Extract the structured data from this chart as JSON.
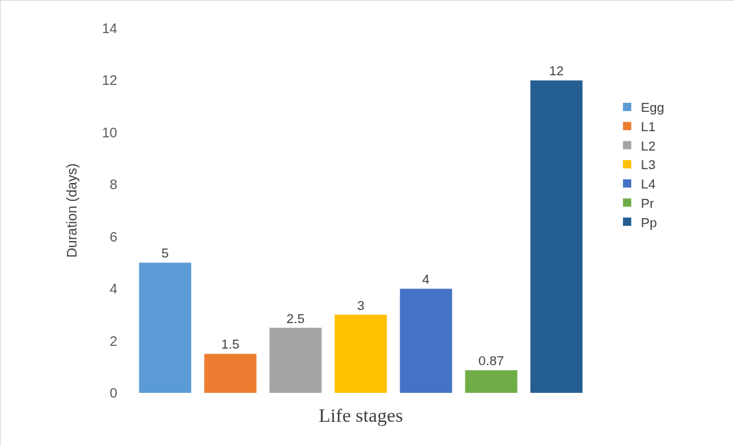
{
  "chart_data": {
    "type": "bar",
    "xlabel": "Life stages",
    "ylabel": "Duration (days)",
    "categories": [
      null
    ],
    "series": [
      {
        "name": "Egg",
        "color": "#5b9bd5",
        "values": [
          5
        ]
      },
      {
        "name": "L1",
        "color": "#ed7d31",
        "values": [
          1.5
        ]
      },
      {
        "name": "L2",
        "color": "#a5a5a5",
        "values": [
          2.5
        ]
      },
      {
        "name": "L3",
        "color": "#ffc000",
        "values": [
          3
        ]
      },
      {
        "name": "L4",
        "color": "#4472c4",
        "values": [
          4
        ]
      },
      {
        "name": "Pr",
        "color": "#70ad47",
        "values": [
          0.87
        ]
      },
      {
        "name": "Pp",
        "color": "#255e91",
        "values": [
          12
        ]
      }
    ],
    "ylim": [
      0,
      14
    ],
    "yticks": [
      0,
      2,
      4,
      6,
      8,
      10,
      12,
      14
    ],
    "data_labels": true,
    "grid": false,
    "legend": "right"
  }
}
